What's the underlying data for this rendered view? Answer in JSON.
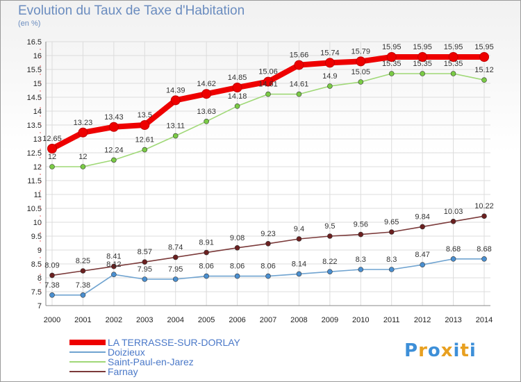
{
  "title": "Evolution du Taux de Taxe d'Habitation",
  "subtitle": "(en %)",
  "logo": {
    "text": "Proxiti",
    "colors": [
      "#3d8fd8",
      "#e8a020",
      "#3d8fd8",
      "#e8a020",
      "#3d8fd8",
      "#e8a020",
      "#3d8fd8"
    ]
  },
  "chart_data": {
    "type": "line",
    "x": [
      "2000",
      "2001",
      "2002",
      "2003",
      "2004",
      "2005",
      "2006",
      "2007",
      "2008",
      "2009",
      "2010",
      "2011",
      "2012",
      "2013",
      "2014"
    ],
    "ylim": [
      7,
      16.5
    ],
    "yticks": [
      "7",
      "7.5",
      "8",
      "8.5",
      "9",
      "9.5",
      "10",
      "10.5",
      "11",
      "11.5",
      "12",
      "12.5",
      "13",
      "13.5",
      "14",
      "14.5",
      "15",
      "15.5",
      "16",
      "16.5"
    ],
    "grid": true,
    "legend_position": "bottom-left",
    "series": [
      {
        "name": "LA TERRASSE-SUR-DORLAY",
        "color": "#ee0000",
        "marker": "#ee0000",
        "values": [
          12.65,
          13.23,
          13.43,
          13.5,
          14.39,
          14.62,
          14.85,
          15.06,
          15.66,
          15.74,
          15.79,
          15.95,
          15.95,
          15.95,
          15.95
        ],
        "labels": [
          "12.65",
          "13.23",
          "13.43",
          "13.5",
          "14.39",
          "14.62",
          "14.85",
          "15.06",
          "15.66",
          "15.74",
          "15.79",
          "15.95",
          "15.95",
          "15.95",
          "15.95"
        ]
      },
      {
        "name": "Doizieux",
        "color": "#6fa3d0",
        "marker": "#4a8fd0",
        "values": [
          7.38,
          7.38,
          8.12,
          7.95,
          7.95,
          8.06,
          8.06,
          8.06,
          8.14,
          8.22,
          8.3,
          8.3,
          8.47,
          8.68,
          8.68
        ],
        "labels": [
          "7.38",
          "7.38",
          "8.12",
          "7.95",
          "7.95",
          "8.06",
          "8.06",
          "8.06",
          "8.14",
          "8.22",
          "8.3",
          "8.3",
          "8.47",
          "8.68",
          "8.68"
        ]
      },
      {
        "name": "Saint-Paul-en-Jarez",
        "color": "#9fd876",
        "marker": "#7acb45",
        "values": [
          12,
          12,
          12.24,
          12.61,
          13.11,
          13.63,
          14.18,
          14.61,
          14.61,
          14.9,
          15.05,
          15.35,
          15.35,
          15.35,
          15.12
        ],
        "labels": [
          "12",
          "12",
          "12.24",
          "12.61",
          "13.11",
          "13.63",
          "14.18",
          "14.61",
          "14.61",
          "14.9",
          "15.05",
          "15.35",
          "15.35",
          "15.35",
          "15.12"
        ]
      },
      {
        "name": "Farnay",
        "color": "#7b3a3a",
        "marker": "#6b2020",
        "values": [
          8.09,
          8.25,
          8.41,
          8.57,
          8.74,
          8.91,
          9.08,
          9.23,
          9.4,
          9.5,
          9.56,
          9.65,
          9.84,
          10.03,
          10.22
        ],
        "labels": [
          "8.09",
          "8.25",
          "8.41",
          "8.57",
          "8.74",
          "8.91",
          "9.08",
          "9.23",
          "9.4",
          "9.5",
          "9.56",
          "9.65",
          "9.84",
          "10.03",
          "10.22"
        ]
      }
    ]
  }
}
